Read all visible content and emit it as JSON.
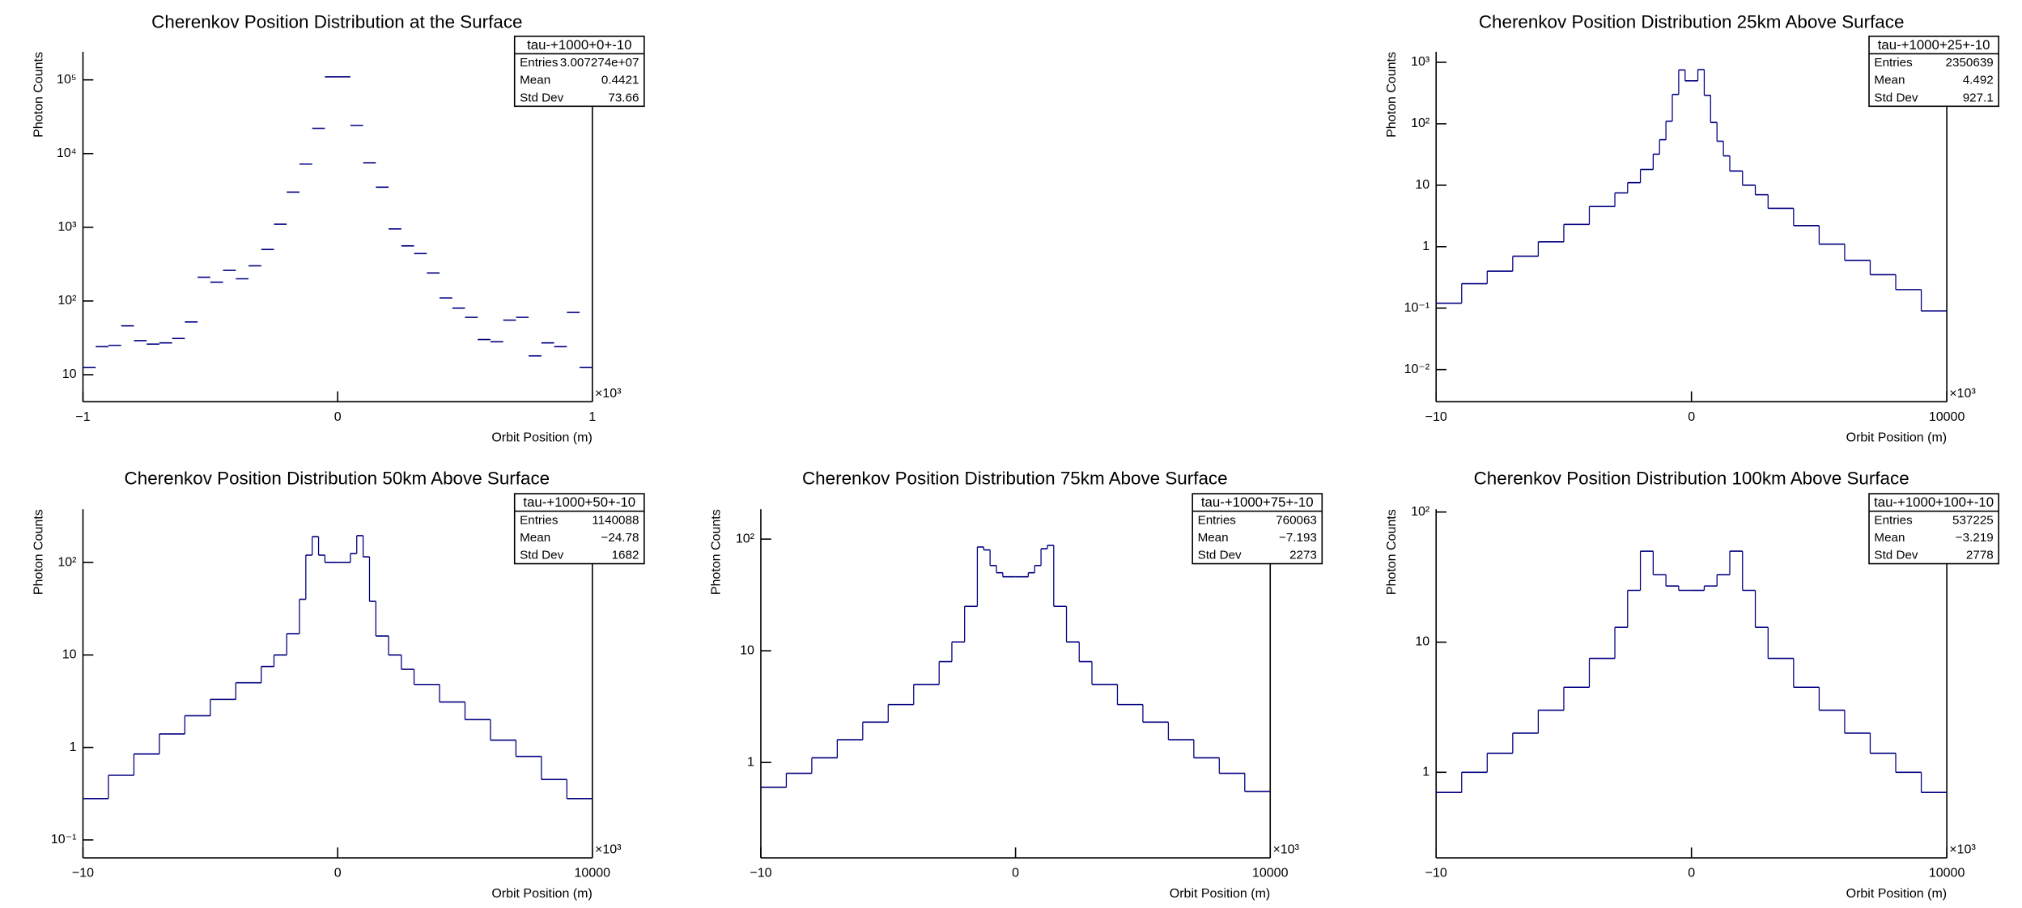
{
  "chart_data": [
    {
      "type": "histogram",
      "title": "Cherenkov Position Distribution at the Surface",
      "x_label": "Orbit Position (m)",
      "y_label": "Photon Counts",
      "x_multiplier": "×10³",
      "log_y": true,
      "color": "#000080",
      "bins": [
        -1000,
        -950,
        -900,
        -850,
        -800,
        -750,
        -700,
        -650,
        -600,
        -550,
        -500,
        -450,
        -400,
        -350,
        -300,
        -250,
        -200,
        -150,
        -100,
        -50,
        0,
        50,
        100,
        150,
        200,
        250,
        300,
        350,
        400,
        450,
        500,
        550,
        600,
        650,
        700,
        750,
        800,
        850,
        900,
        950,
        1000
      ],
      "values": [
        12.5,
        24,
        25,
        46,
        29,
        26,
        27,
        31,
        52,
        210,
        180,
        260,
        200,
        300,
        500,
        1100,
        3000,
        7200,
        22000,
        110000,
        110000,
        24000,
        7500,
        3500,
        950,
        560,
        440,
        240,
        110,
        80,
        60,
        30,
        28,
        55,
        60,
        18,
        27,
        24,
        70,
        12.5
      ],
      "xlim": [
        -1000,
        1000
      ],
      "xticks": [
        {
          "value": -1000,
          "label": "−1"
        },
        0,
        {
          "value": 1000,
          "label": "1"
        }
      ],
      "ylim": [
        4.3,
        240000
      ],
      "yticks": [
        10,
        {
          "value": 100,
          "label": "10²"
        },
        {
          "value": 1000,
          "label": "10³"
        },
        {
          "value": 10000,
          "label": "10⁴"
        },
        {
          "value": 100000,
          "label": "10⁵"
        }
      ],
      "stats": {
        "name": "tau-+1000+0+-10",
        "rows": [
          {
            "label": "Entries",
            "value": "3.007274e+07"
          },
          {
            "label": "Mean",
            "value": "0.4421"
          },
          {
            "label": "Std Dev",
            "value": "73.66"
          }
        ]
      }
    },
    {
      "type": "histogram",
      "title": "Cherenkov Position Distribution 25km Above Surface",
      "x_label": "Orbit Position (m)",
      "y_label": "Photon Counts",
      "x_multiplier": "×10³",
      "log_y": true,
      "color": "#000080",
      "bins": [
        -10000,
        -9000,
        -8000,
        -7000,
        -6000,
        -5000,
        -4000,
        -3000,
        -2500,
        -2000,
        -1500,
        -1250,
        -1000,
        -750,
        -500,
        -250,
        0,
        250,
        500,
        750,
        1000,
        1250,
        1500,
        2000,
        2500,
        3000,
        4000,
        5000,
        6000,
        7000,
        8000,
        9000,
        10000
      ],
      "values": [
        0.12,
        0.25,
        0.4,
        0.7,
        1.2,
        2.3,
        4.5,
        7.5,
        11,
        18,
        32,
        55,
        110,
        300,
        750,
        500,
        500,
        760,
        290,
        105,
        52,
        30,
        17,
        10,
        7,
        4.2,
        2.2,
        1.1,
        0.6,
        0.35,
        0.2,
        0.09
      ],
      "xlim": [
        -10000,
        10000
      ],
      "xticks": [
        {
          "value": -10000,
          "label": "−10"
        },
        0,
        10000
      ],
      "ylim": [
        0.003,
        1480
      ],
      "yticks": [
        {
          "value": 0.01,
          "label": "10⁻²"
        },
        {
          "value": 0.1,
          "label": "10⁻¹"
        },
        1,
        10,
        {
          "value": 100,
          "label": "10²"
        },
        {
          "value": 1000,
          "label": "10³"
        }
      ],
      "stats": {
        "name": "tau-+1000+25+-10",
        "rows": [
          {
            "label": "Entries",
            "value": "2350639"
          },
          {
            "label": "Mean",
            "value": "4.492"
          },
          {
            "label": "Std Dev",
            "value": "927.1"
          }
        ]
      }
    },
    {
      "type": "histogram",
      "title": "Cherenkov Position Distribution 50km Above Surface",
      "x_label": "Orbit Position (m)",
      "y_label": "Photon Counts",
      "x_multiplier": "×10³",
      "log_y": true,
      "color": "#000080",
      "bins": [
        -10000,
        -9000,
        -8000,
        -7000,
        -6000,
        -5000,
        -4000,
        -3000,
        -2500,
        -2000,
        -1500,
        -1250,
        -1000,
        -750,
        -500,
        0,
        500,
        750,
        1000,
        1250,
        1500,
        2000,
        2500,
        3000,
        4000,
        5000,
        6000,
        7000,
        8000,
        9000,
        10000
      ],
      "values": [
        0.28,
        0.5,
        0.85,
        1.4,
        2.2,
        3.3,
        5,
        7.5,
        10,
        17,
        40,
        120,
        190,
        120,
        100,
        100,
        125,
        195,
        115,
        38,
        16,
        10,
        7,
        4.8,
        3.1,
        2,
        1.2,
        0.8,
        0.45,
        0.28
      ],
      "xlim": [
        -10000,
        10000
      ],
      "xticks": [
        {
          "value": -10000,
          "label": "−10"
        },
        0,
        10000
      ],
      "ylim": [
        0.064,
        376
      ],
      "yticks": [
        {
          "value": 0.1,
          "label": "10⁻¹"
        },
        1,
        10,
        {
          "value": 100,
          "label": "10²"
        }
      ],
      "stats": {
        "name": "tau-+1000+50+-10",
        "rows": [
          {
            "label": "Entries",
            "value": "1140088"
          },
          {
            "label": "Mean",
            "value": "−24.78"
          },
          {
            "label": "Std Dev",
            "value": "1682"
          }
        ]
      }
    },
    {
      "type": "histogram",
      "title": "Cherenkov Position Distribution 75km Above Surface",
      "x_label": "Orbit Position (m)",
      "y_label": "Photon Counts",
      "x_multiplier": "×10³",
      "log_y": true,
      "color": "#000080",
      "bins": [
        -10000,
        -9000,
        -8000,
        -7000,
        -6000,
        -5000,
        -4000,
        -3000,
        -2500,
        -2000,
        -1500,
        -1250,
        -1000,
        -750,
        -500,
        0,
        500,
        750,
        1000,
        1250,
        1500,
        2000,
        2500,
        3000,
        4000,
        5000,
        6000,
        7000,
        8000,
        9000,
        10000
      ],
      "values": [
        0.6,
        0.8,
        1.1,
        1.6,
        2.3,
        3.3,
        5,
        8,
        12,
        25,
        85,
        80,
        58,
        50,
        46,
        46,
        50,
        58,
        82,
        88,
        25,
        12,
        8,
        5,
        3.3,
        2.3,
        1.6,
        1.1,
        0.8,
        0.55
      ],
      "xlim": [
        -10000,
        10000
      ],
      "xticks": [
        {
          "value": -10000,
          "label": "−10"
        },
        0,
        10000
      ],
      "ylim": [
        0.14,
        185
      ],
      "yticks": [
        1,
        10,
        {
          "value": 100,
          "label": "10²"
        }
      ],
      "stats": {
        "name": "tau-+1000+75+-10",
        "rows": [
          {
            "label": "Entries",
            "value": "760063"
          },
          {
            "label": "Mean",
            "value": "−7.193"
          },
          {
            "label": "Std Dev",
            "value": "2273"
          }
        ]
      }
    },
    {
      "type": "histogram",
      "title": "Cherenkov Position Distribution 100km Above Surface",
      "x_label": "Orbit Position (m)",
      "y_label": "Photon Counts",
      "x_multiplier": "×10³",
      "log_y": true,
      "color": "#000080",
      "bins": [
        -10000,
        -9000,
        -8000,
        -7000,
        -6000,
        -5000,
        -4000,
        -3000,
        -2500,
        -2000,
        -1500,
        -1000,
        -500,
        0,
        500,
        1000,
        1500,
        2000,
        2500,
        3000,
        4000,
        5000,
        6000,
        7000,
        8000,
        9000,
        10000
      ],
      "values": [
        0.7,
        1,
        1.4,
        2,
        3,
        4.5,
        7.5,
        13,
        25,
        50,
        33,
        27,
        25,
        25,
        27,
        33,
        50,
        25,
        13,
        7.5,
        4.5,
        3,
        2,
        1.4,
        1,
        0.7
      ],
      "xlim": [
        -10000,
        10000
      ],
      "xticks": [
        {
          "value": -10000,
          "label": "−10"
        },
        0,
        10000
      ],
      "ylim": [
        0.22,
        105
      ],
      "yticks": [
        1,
        10,
        {
          "value": 100,
          "label": "10²"
        }
      ],
      "stats": {
        "name": "tau-+1000+100+-10",
        "rows": [
          {
            "label": "Entries",
            "value": "537225"
          },
          {
            "label": "Mean",
            "value": "−3.219"
          },
          {
            "label": "Std Dev",
            "value": "2778"
          }
        ]
      }
    }
  ]
}
